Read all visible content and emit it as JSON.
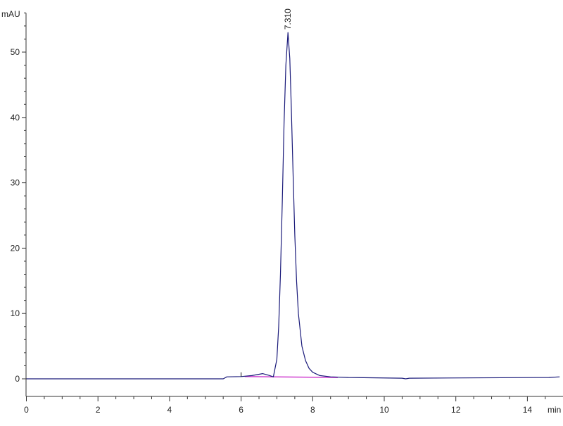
{
  "chart_data": {
    "type": "line",
    "title": "",
    "xlabel": "min",
    "ylabel": "mAU",
    "xlim": [
      0,
      14.9
    ],
    "ylim": [
      -3,
      56
    ],
    "x_ticks": [
      0,
      2,
      4,
      6,
      8,
      10,
      12,
      14
    ],
    "y_ticks": [
      0,
      10,
      20,
      30,
      40,
      50
    ],
    "x_minor_step": 0.5,
    "y_minor_step": 2,
    "grid": false,
    "colors": {
      "signal": "#1a1a7a",
      "baseline": "#d040d0",
      "axis": "#333333"
    },
    "series": [
      {
        "x": [
          0,
          5.5,
          5.6,
          6.0,
          6.3,
          6.6,
          6.8,
          6.9,
          7.0,
          7.05,
          7.1,
          7.15,
          7.2,
          7.25,
          7.31,
          7.36,
          7.4,
          7.45,
          7.5,
          7.55,
          7.6,
          7.7,
          7.8,
          7.9,
          8.0,
          8.2,
          8.5,
          9.0,
          10.5,
          10.6,
          10.7,
          14.6,
          14.9
        ],
        "y": [
          0,
          0,
          0.3,
          0.35,
          0.5,
          0.8,
          0.5,
          0.3,
          3,
          8,
          16,
          27,
          39,
          48,
          53,
          49,
          42,
          32,
          22,
          15,
          10,
          5,
          2.8,
          1.6,
          1.0,
          0.5,
          0.3,
          0.2,
          0.1,
          0,
          0.1,
          0.2,
          0.3
        ]
      }
    ],
    "baseline": {
      "x": [
        6.1,
        8.7
      ],
      "y": [
        0.35,
        0.2
      ]
    },
    "annotations": [
      {
        "text": "7.310",
        "x": 7.31,
        "y": 53
      }
    ]
  }
}
